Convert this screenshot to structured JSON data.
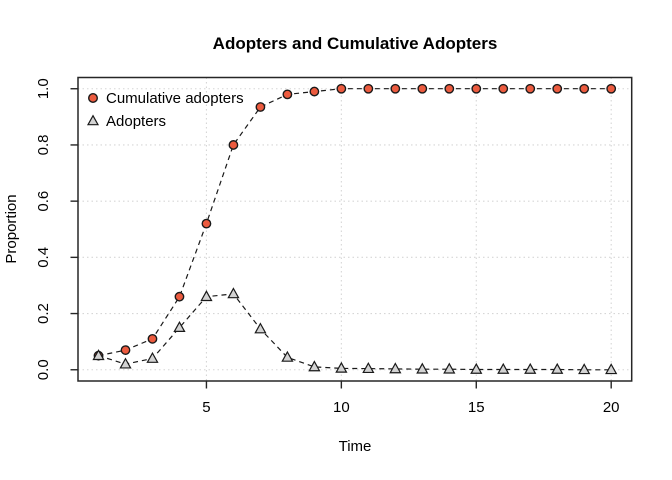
{
  "chart_data": {
    "type": "line",
    "title": "Adopters and Cumulative Adopters",
    "xlabel": "Time",
    "ylabel": "Proportion",
    "x": [
      1,
      2,
      3,
      4,
      5,
      6,
      7,
      8,
      9,
      10,
      11,
      12,
      13,
      14,
      15,
      16,
      17,
      18,
      19,
      20
    ],
    "series": [
      {
        "name": "Cumulative adopters",
        "marker": "circle",
        "marker_fill": "#ec5b3f",
        "values": [
          0.05,
          0.07,
          0.11,
          0.26,
          0.52,
          0.8,
          0.935,
          0.98,
          0.99,
          1.0,
          1.0,
          1.0,
          1.0,
          1.0,
          1.0,
          1.0,
          1.0,
          1.0,
          1.0,
          1.0
        ]
      },
      {
        "name": "Adopters",
        "marker": "triangle",
        "marker_fill": "#d3d3d3",
        "values": [
          0.05,
          0.02,
          0.04,
          0.15,
          0.26,
          0.27,
          0.145,
          0.044,
          0.01,
          0.005,
          0.004,
          0.003,
          0.002,
          0.002,
          0.001,
          0.001,
          0.001,
          0.001,
          0.0,
          0.0
        ]
      }
    ],
    "x_ticks": [
      5,
      10,
      15,
      20
    ],
    "y_ticks": [
      "0.0",
      "0.2",
      "0.4",
      "0.6",
      "0.8",
      "1.0"
    ],
    "xlim": [
      1,
      20
    ],
    "ylim": [
      0.0,
      1.0
    ],
    "grid": true,
    "grid_style": "dotted",
    "line_style": "dashed",
    "legend_position": "top-left",
    "colors": {
      "line": "#1a1a1a",
      "frame": "#262626",
      "grid": "#d6d6d6",
      "cumulative_marker": "#ec5b3f",
      "adopters_marker": "#d3d3d3",
      "marker_stroke": "#1a1a1a"
    }
  }
}
